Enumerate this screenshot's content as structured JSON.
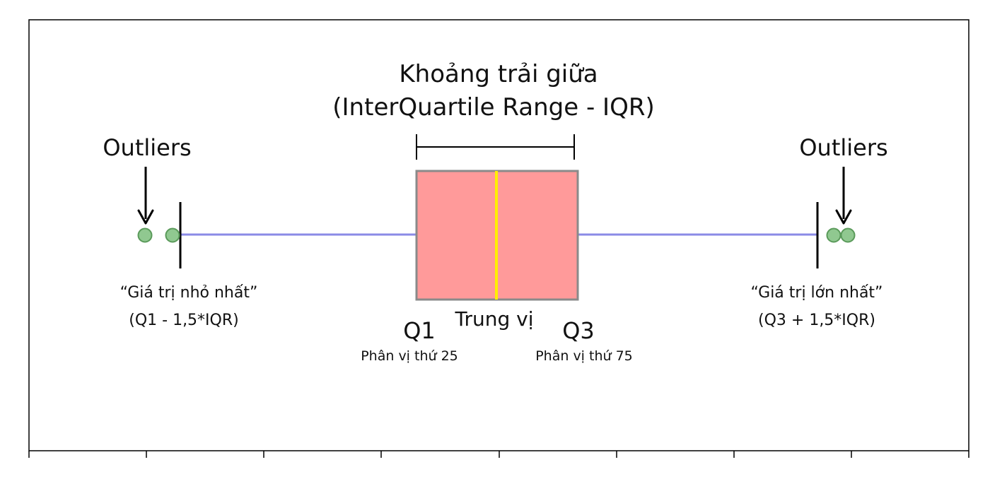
{
  "title": {
    "line1": "Khoảng trải giữa",
    "line2": "(InterQuartile Range - IQR)"
  },
  "outliers": {
    "left_label": "Outliers",
    "right_label": "Outliers"
  },
  "minimum": {
    "line1": "“Giá trị nhỏ nhất”",
    "line2": "(Q1 - 1,5*IQR)"
  },
  "maximum": {
    "line1": "“Giá trị lớn nhất”",
    "line2": "(Q3 + 1,5*IQR)"
  },
  "median": {
    "label": "Trung vị"
  },
  "q1": {
    "label": "Q1",
    "sublabel": "Phân vị thứ 25"
  },
  "q3": {
    "label": "Q3",
    "sublabel": "Phân vị thứ 75"
  },
  "colors": {
    "box_fill": "#ff9a9a",
    "box_stroke": "#8a8a8a",
    "median": "#ffee00",
    "whisker": "#8a8ae6",
    "outlier_fill": "#90c890",
    "outlier_stroke": "#5a9a5a"
  },
  "icons": [
    "down-arrow-icon",
    "down-arrow-icon"
  ]
}
